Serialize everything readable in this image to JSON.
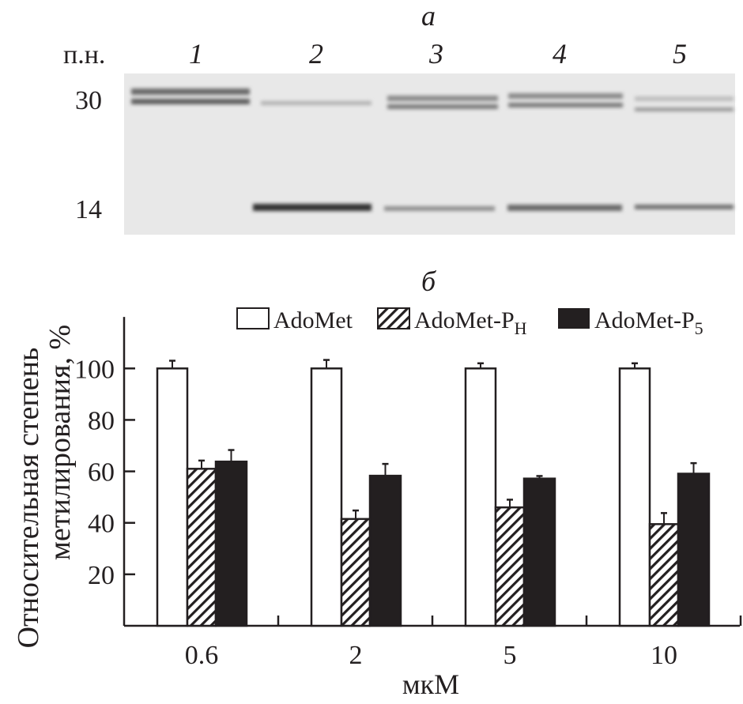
{
  "panel_a": {
    "letter": "а",
    "size_label": "п.н.",
    "lanes": [
      "1",
      "2",
      "3",
      "4",
      "5"
    ],
    "markers": [
      "30",
      "14"
    ],
    "gel_background": "#e8e8e8"
  },
  "panel_b": {
    "letter": "б"
  },
  "legend": [
    {
      "base": "AdoMet",
      "sub": ""
    },
    {
      "base": "AdoMet-P",
      "sub": "H"
    },
    {
      "base": "AdoMet-P",
      "sub": "5"
    }
  ],
  "chart_data": {
    "type": "bar",
    "xlabel": "мкМ",
    "ylabel_lines": [
      "Относительная степень",
      "метилирования, %"
    ],
    "categories": [
      "0.6",
      "2",
      "5",
      "10"
    ],
    "ylim": [
      0,
      120
    ],
    "yticks": [
      20,
      40,
      60,
      80,
      100
    ],
    "grid": false,
    "legend_position": "top-right",
    "series": [
      {
        "name": "AdoMet",
        "fill": "white",
        "values": [
          100,
          100,
          100,
          100
        ],
        "errors": [
          3,
          3.3,
          2,
          2
        ]
      },
      {
        "name": "AdoMet-PH",
        "fill": "hatched",
        "values": [
          61,
          41.5,
          46,
          39.5
        ],
        "errors": [
          3.2,
          3.3,
          3,
          4.3
        ]
      },
      {
        "name": "AdoMet-P5",
        "fill": "black",
        "values": [
          63.8,
          58.3,
          57.2,
          59.1
        ],
        "errors": [
          4.5,
          4.6,
          1,
          4.1
        ]
      }
    ]
  }
}
